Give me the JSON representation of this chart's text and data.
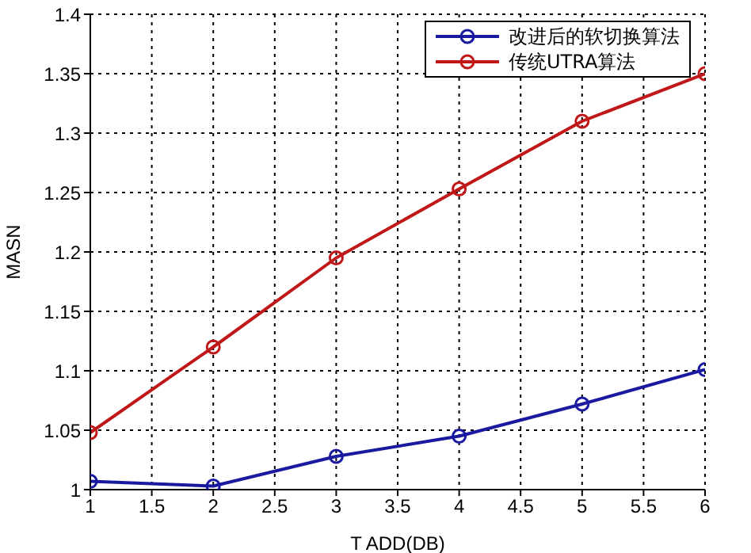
{
  "chart_data": {
    "type": "line",
    "xlabel": "T ADD(DB)",
    "ylabel": "MASN",
    "x": [
      1,
      2,
      3,
      4,
      5,
      6
    ],
    "series": [
      {
        "name": "改进后的软切换算法",
        "color": "#1a1aa0",
        "values": [
          1.007,
          1.003,
          1.028,
          1.045,
          1.072,
          1.101
        ]
      },
      {
        "name": "传统UTRA算法",
        "color": "#c01818",
        "values": [
          1.048,
          1.12,
          1.195,
          1.253,
          1.31,
          1.35
        ]
      }
    ],
    "xlim": [
      1,
      6
    ],
    "xticks": [
      1,
      1.5,
      2,
      2.5,
      3,
      3.5,
      4,
      4.5,
      5,
      5.5,
      6
    ],
    "ylim": [
      1,
      1.4
    ],
    "yticks": [
      1,
      1.05,
      1.1,
      1.15,
      1.2,
      1.25,
      1.3,
      1.35,
      1.4
    ],
    "grid": true,
    "legend": "top right",
    "marker": "circle",
    "line_style": "solid"
  }
}
